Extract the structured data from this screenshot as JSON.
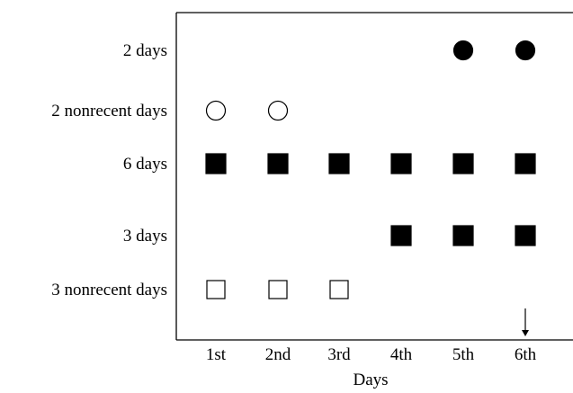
{
  "chart_data": {
    "type": "scatter",
    "xlabel": "Days",
    "ylabel": "",
    "categories": [
      "1st",
      "2nd",
      "3rd",
      "4th",
      "5th",
      "6th"
    ],
    "rows": [
      {
        "label": "2 days",
        "marker": "circle",
        "fill": "#000000",
        "days": [
          "5th",
          "6th"
        ]
      },
      {
        "label": "2 nonrecent days",
        "marker": "circle",
        "fill": "#ffffff",
        "days": [
          "1st",
          "2nd"
        ]
      },
      {
        "label": "6 days",
        "marker": "square",
        "fill": "#000000",
        "days": [
          "1st",
          "2nd",
          "3rd",
          "4th",
          "5th",
          "6th"
        ]
      },
      {
        "label": "3 days",
        "marker": "square",
        "fill": "#000000",
        "days": [
          "4th",
          "5th",
          "6th"
        ]
      },
      {
        "label": "3 nonrecent days",
        "marker": "square",
        "fill": "#ffffff",
        "days": [
          "1st",
          "2nd",
          "3rd"
        ]
      }
    ],
    "annotation": {
      "type": "arrow",
      "day": "6th"
    },
    "frame": "top-left-bottom",
    "grid": false
  }
}
